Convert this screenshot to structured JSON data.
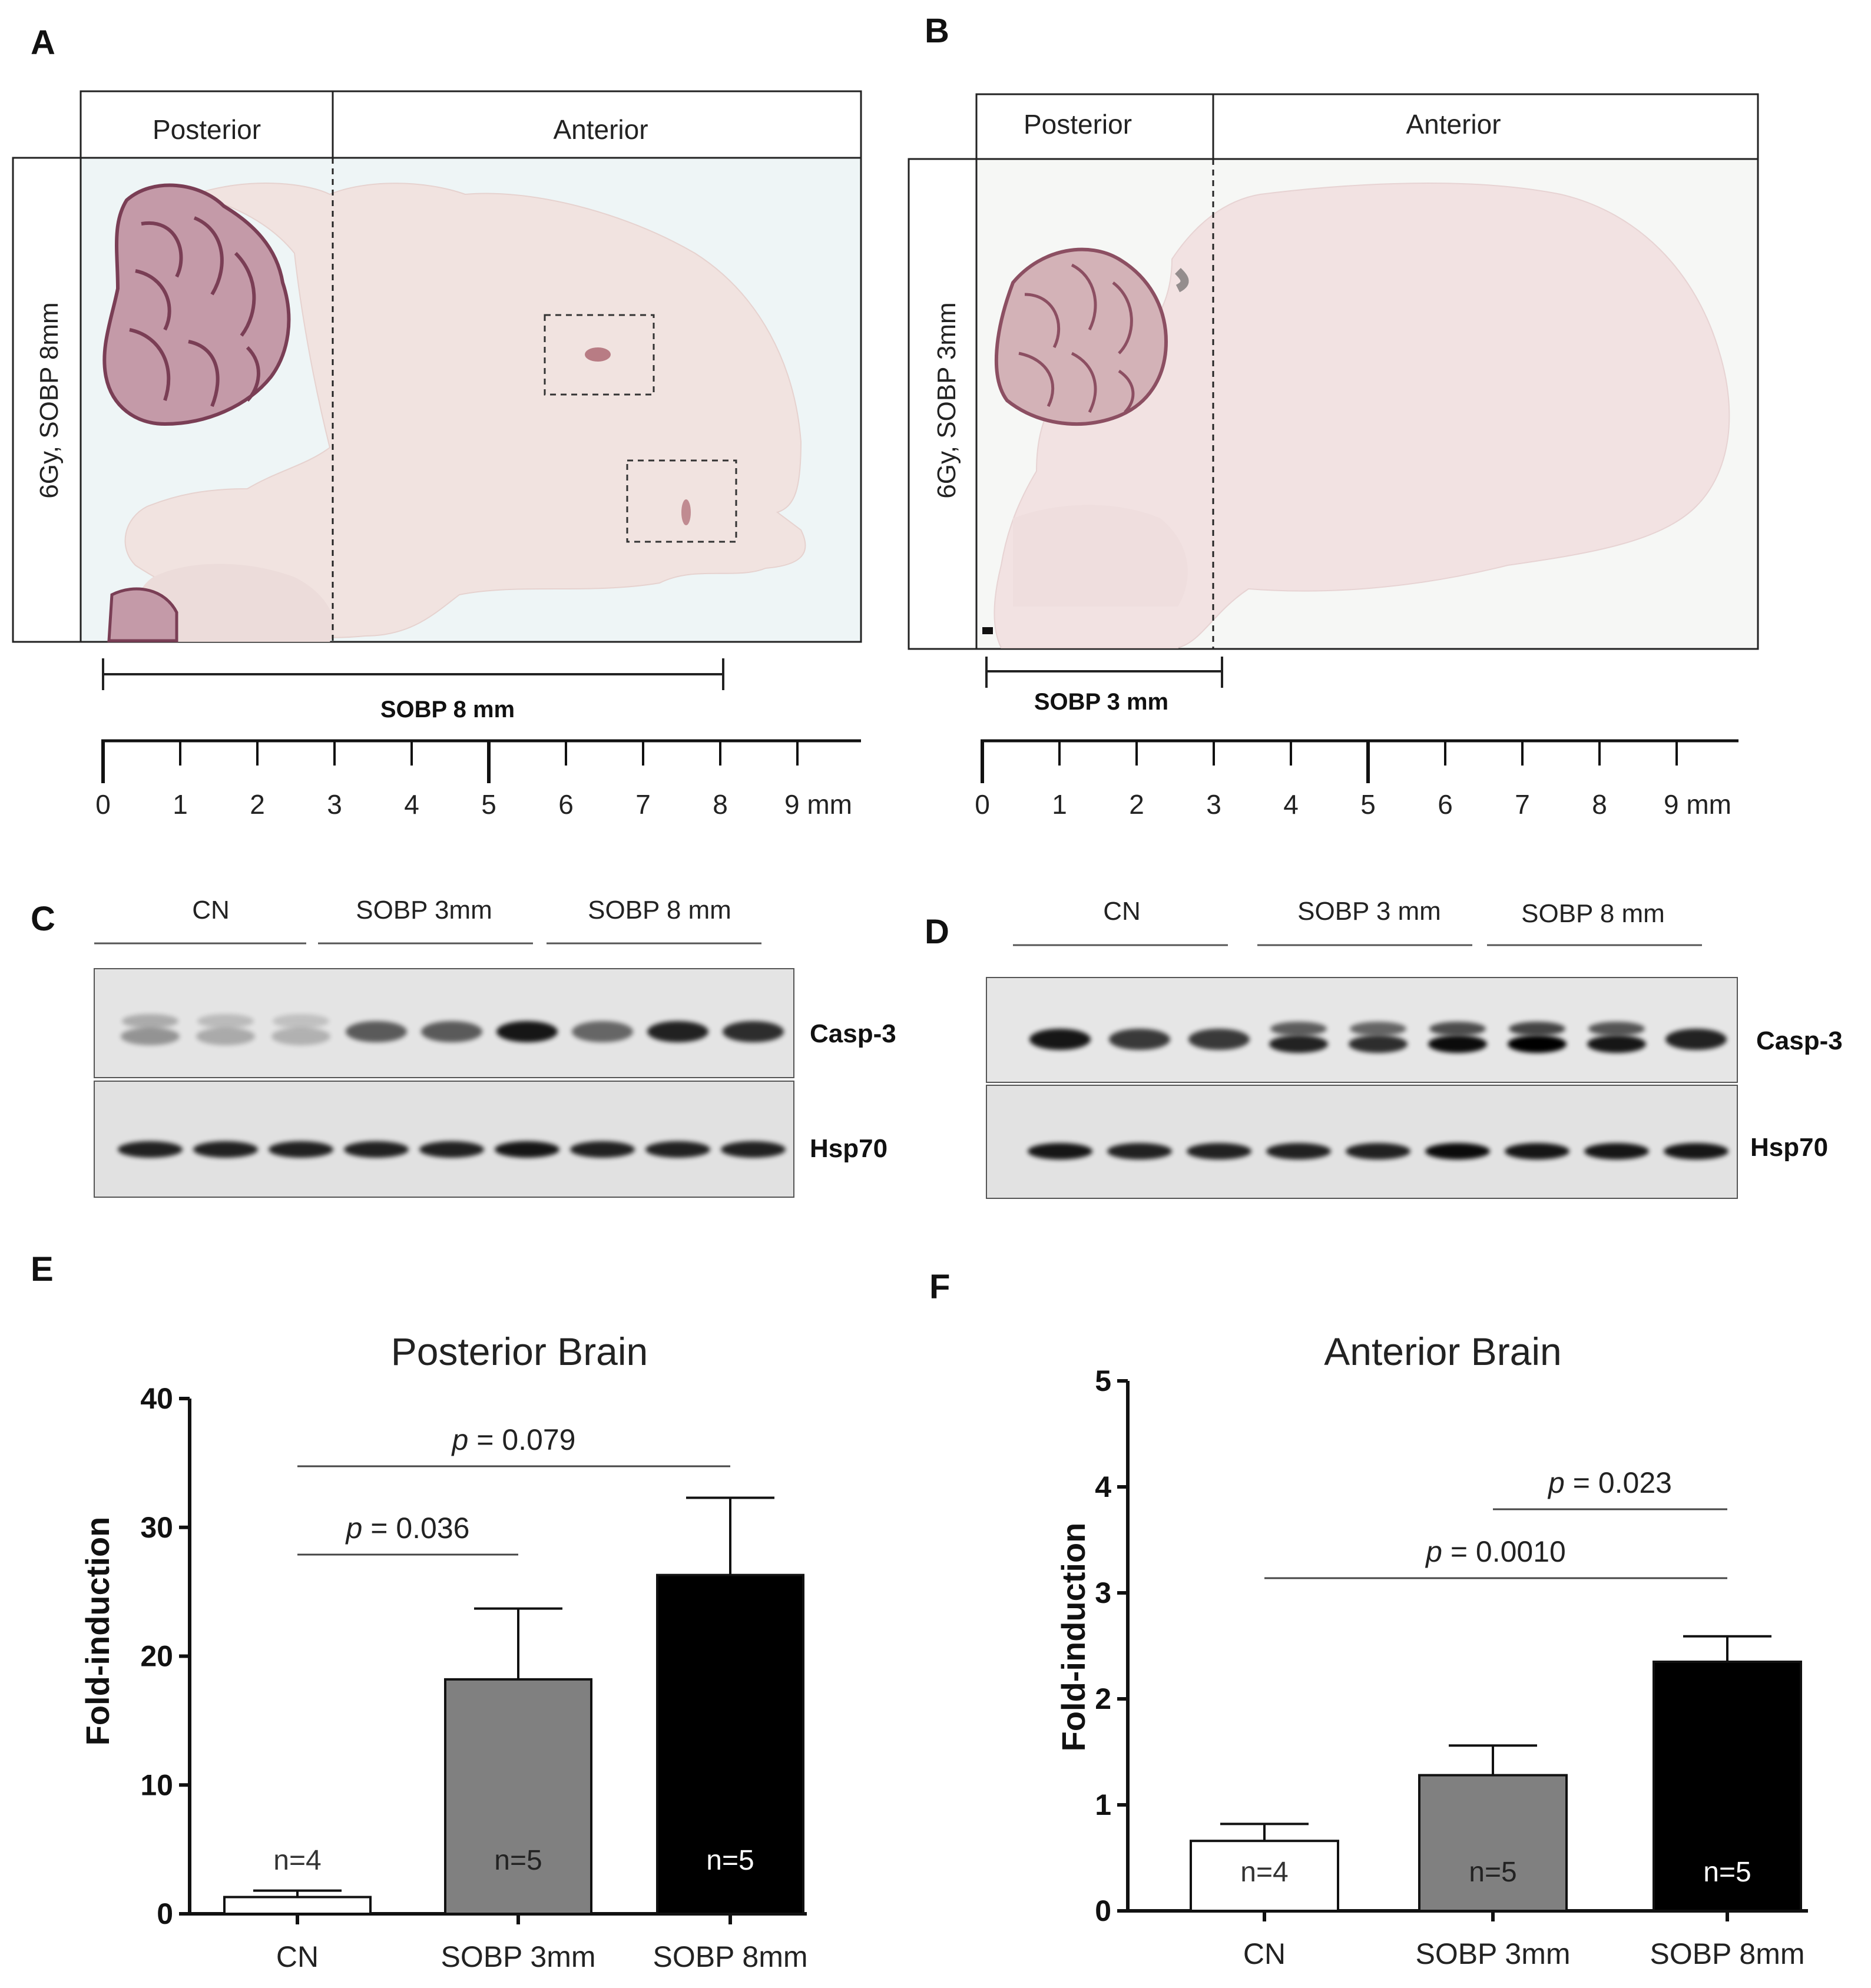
{
  "panels": {
    "a": "A",
    "b": "B",
    "c": "C",
    "d": "D",
    "e": "E",
    "f": "F"
  },
  "histology_a": {
    "posterior": "Posterior",
    "anterior": "Anterior",
    "side_label": "6Gy, SOBP  8mm",
    "bracket_label": "SOBP 8 mm",
    "ticks": [
      "0",
      "1",
      "2",
      "3",
      "4",
      "5",
      "6",
      "7",
      "8",
      "9 mm"
    ]
  },
  "histology_b": {
    "posterior": "Posterior",
    "anterior": "Anterior",
    "side_label": "6Gy, SOBP  3mm",
    "bracket_label": "SOBP 3 mm",
    "ticks": [
      "0",
      "1",
      "2",
      "3",
      "4",
      "5",
      "6",
      "7",
      "8",
      "9 mm"
    ]
  },
  "blot_c": {
    "groups": [
      "CN",
      "SOBP 3mm",
      "SOBP 8 mm"
    ],
    "row1": "Casp-3",
    "row2": "Hsp70"
  },
  "blot_d": {
    "groups": [
      "CN",
      "SOBP 3 mm",
      "SOBP 8 mm"
    ],
    "row1": "Casp-3",
    "row2": "Hsp70"
  },
  "chart_data": [
    {
      "type": "bar",
      "title": "Posterior Brain",
      "ylabel": "Fold-induction",
      "xlabel": "",
      "ylim": [
        0,
        40
      ],
      "yticks": [
        "0",
        "10",
        "20",
        "30",
        "40"
      ],
      "categories": [
        "CN",
        "SOBP 3mm",
        "SOBP 8mm"
      ],
      "values": [
        1.3,
        18.2,
        26.3
      ],
      "errors": [
        0.5,
        5.5,
        6.0
      ],
      "n_labels": [
        "n=4",
        "n=5",
        "n=5"
      ],
      "bar_colors": [
        "#ffffff",
        "#808080",
        "#000000"
      ],
      "n_colors": [
        "#333333",
        "#222222",
        "#ffffff"
      ],
      "comparisons": [
        {
          "from": 0,
          "to": 2,
          "p": "0.079"
        },
        {
          "from": 0,
          "to": 1,
          "p": "0.036"
        }
      ]
    },
    {
      "type": "bar",
      "title": "Anterior Brain",
      "ylabel": "Fold-induction",
      "xlabel": "",
      "ylim": [
        0,
        5
      ],
      "yticks": [
        "0",
        "1",
        "2",
        "3",
        "4",
        "5"
      ],
      "categories": [
        "CN",
        "SOBP 3mm",
        "SOBP 8mm"
      ],
      "values": [
        0.66,
        1.28,
        2.35
      ],
      "errors": [
        0.16,
        0.28,
        0.24
      ],
      "n_labels": [
        "n=4",
        "n=5",
        "n=5"
      ],
      "bar_colors": [
        "#ffffff",
        "#808080",
        "#000000"
      ],
      "n_colors": [
        "#333333",
        "#222222",
        "#ffffff"
      ],
      "comparisons": [
        {
          "from": 1,
          "to": 2,
          "p": "0.023"
        },
        {
          "from": 0,
          "to": 2,
          "p": "0.0010"
        }
      ]
    }
  ]
}
